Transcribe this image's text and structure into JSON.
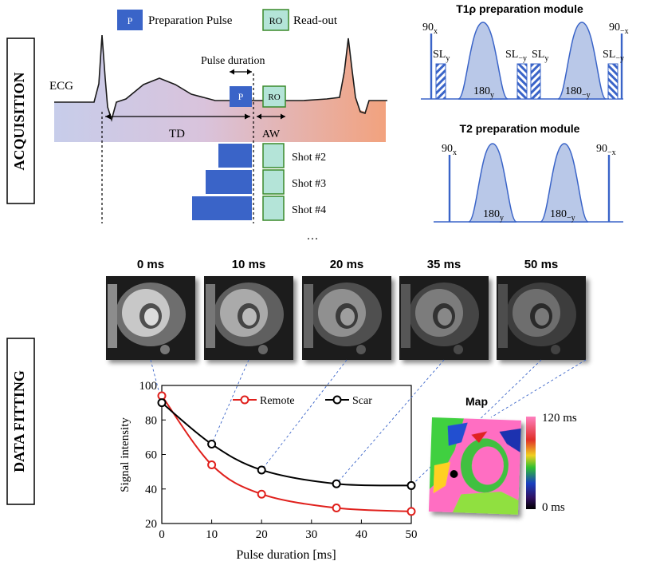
{
  "sections": {
    "acquisition": "ACQUISITION",
    "data_fitting": "DATA FITTING"
  },
  "legend": {
    "p_box": "P",
    "p_label": "Preparation Pulse",
    "ro_box": "RO",
    "ro_label": "Read-out"
  },
  "ecg": {
    "ecg_label": "ECG",
    "pulse_duration": "Pulse duration",
    "td": "TD",
    "aw": "AW",
    "p_box": "P",
    "ro_box": "RO",
    "shots": [
      "Shot #2",
      "Shot #3",
      "Shot #4"
    ],
    "ellipsis": "…"
  },
  "t1rho": {
    "title": "T1ρ preparation module",
    "labels": [
      {
        "base": "90",
        "sub": "x"
      },
      {
        "base": "SL",
        "sub": "y"
      },
      {
        "base": "180",
        "sub": "y"
      },
      {
        "base": "SL",
        "sub": "−y"
      },
      {
        "base": "SL",
        "sub": "y"
      },
      {
        "base": "180",
        "sub": "−y"
      },
      {
        "base": "SL",
        "sub": "−y"
      },
      {
        "base": "90",
        "sub": "−x"
      }
    ]
  },
  "t2": {
    "title": "T2 preparation module",
    "labels": [
      {
        "base": "90",
        "sub": "x"
      },
      {
        "base": "180",
        "sub": "y"
      },
      {
        "base": "180",
        "sub": "−y"
      },
      {
        "base": "90",
        "sub": "−x"
      }
    ]
  },
  "images": {
    "labels": [
      "0 ms",
      "10 ms",
      "20 ms",
      "35 ms",
      "50 ms"
    ]
  },
  "map": {
    "title": "Map",
    "colorbar_max": "120 ms",
    "colorbar_min": "0 ms"
  },
  "colors": {
    "remote": "#e0201c",
    "scar": "#000000",
    "pulse_blue": "#3a64c8",
    "ro_fill": "#b4e4d8",
    "ro_border": "#3a8a2a"
  },
  "chart_data": {
    "type": "line",
    "xlabel": "Pulse duration [ms]",
    "ylabel": "Signal intensity",
    "xlim": [
      0,
      50
    ],
    "ylim": [
      20,
      100
    ],
    "xticks": [
      0,
      10,
      20,
      30,
      40,
      50
    ],
    "yticks": [
      20,
      40,
      60,
      80,
      100
    ],
    "legend_position": "top",
    "series": [
      {
        "name": "Remote",
        "x": [
          0,
          10,
          20,
          35,
          50
        ],
        "y": [
          94,
          54,
          37,
          29,
          27
        ],
        "color": "#e0201c"
      },
      {
        "name": "Scar",
        "x": [
          0,
          10,
          20,
          35,
          50
        ],
        "y": [
          90,
          66,
          51,
          43,
          42
        ],
        "color": "#000000"
      }
    ]
  }
}
